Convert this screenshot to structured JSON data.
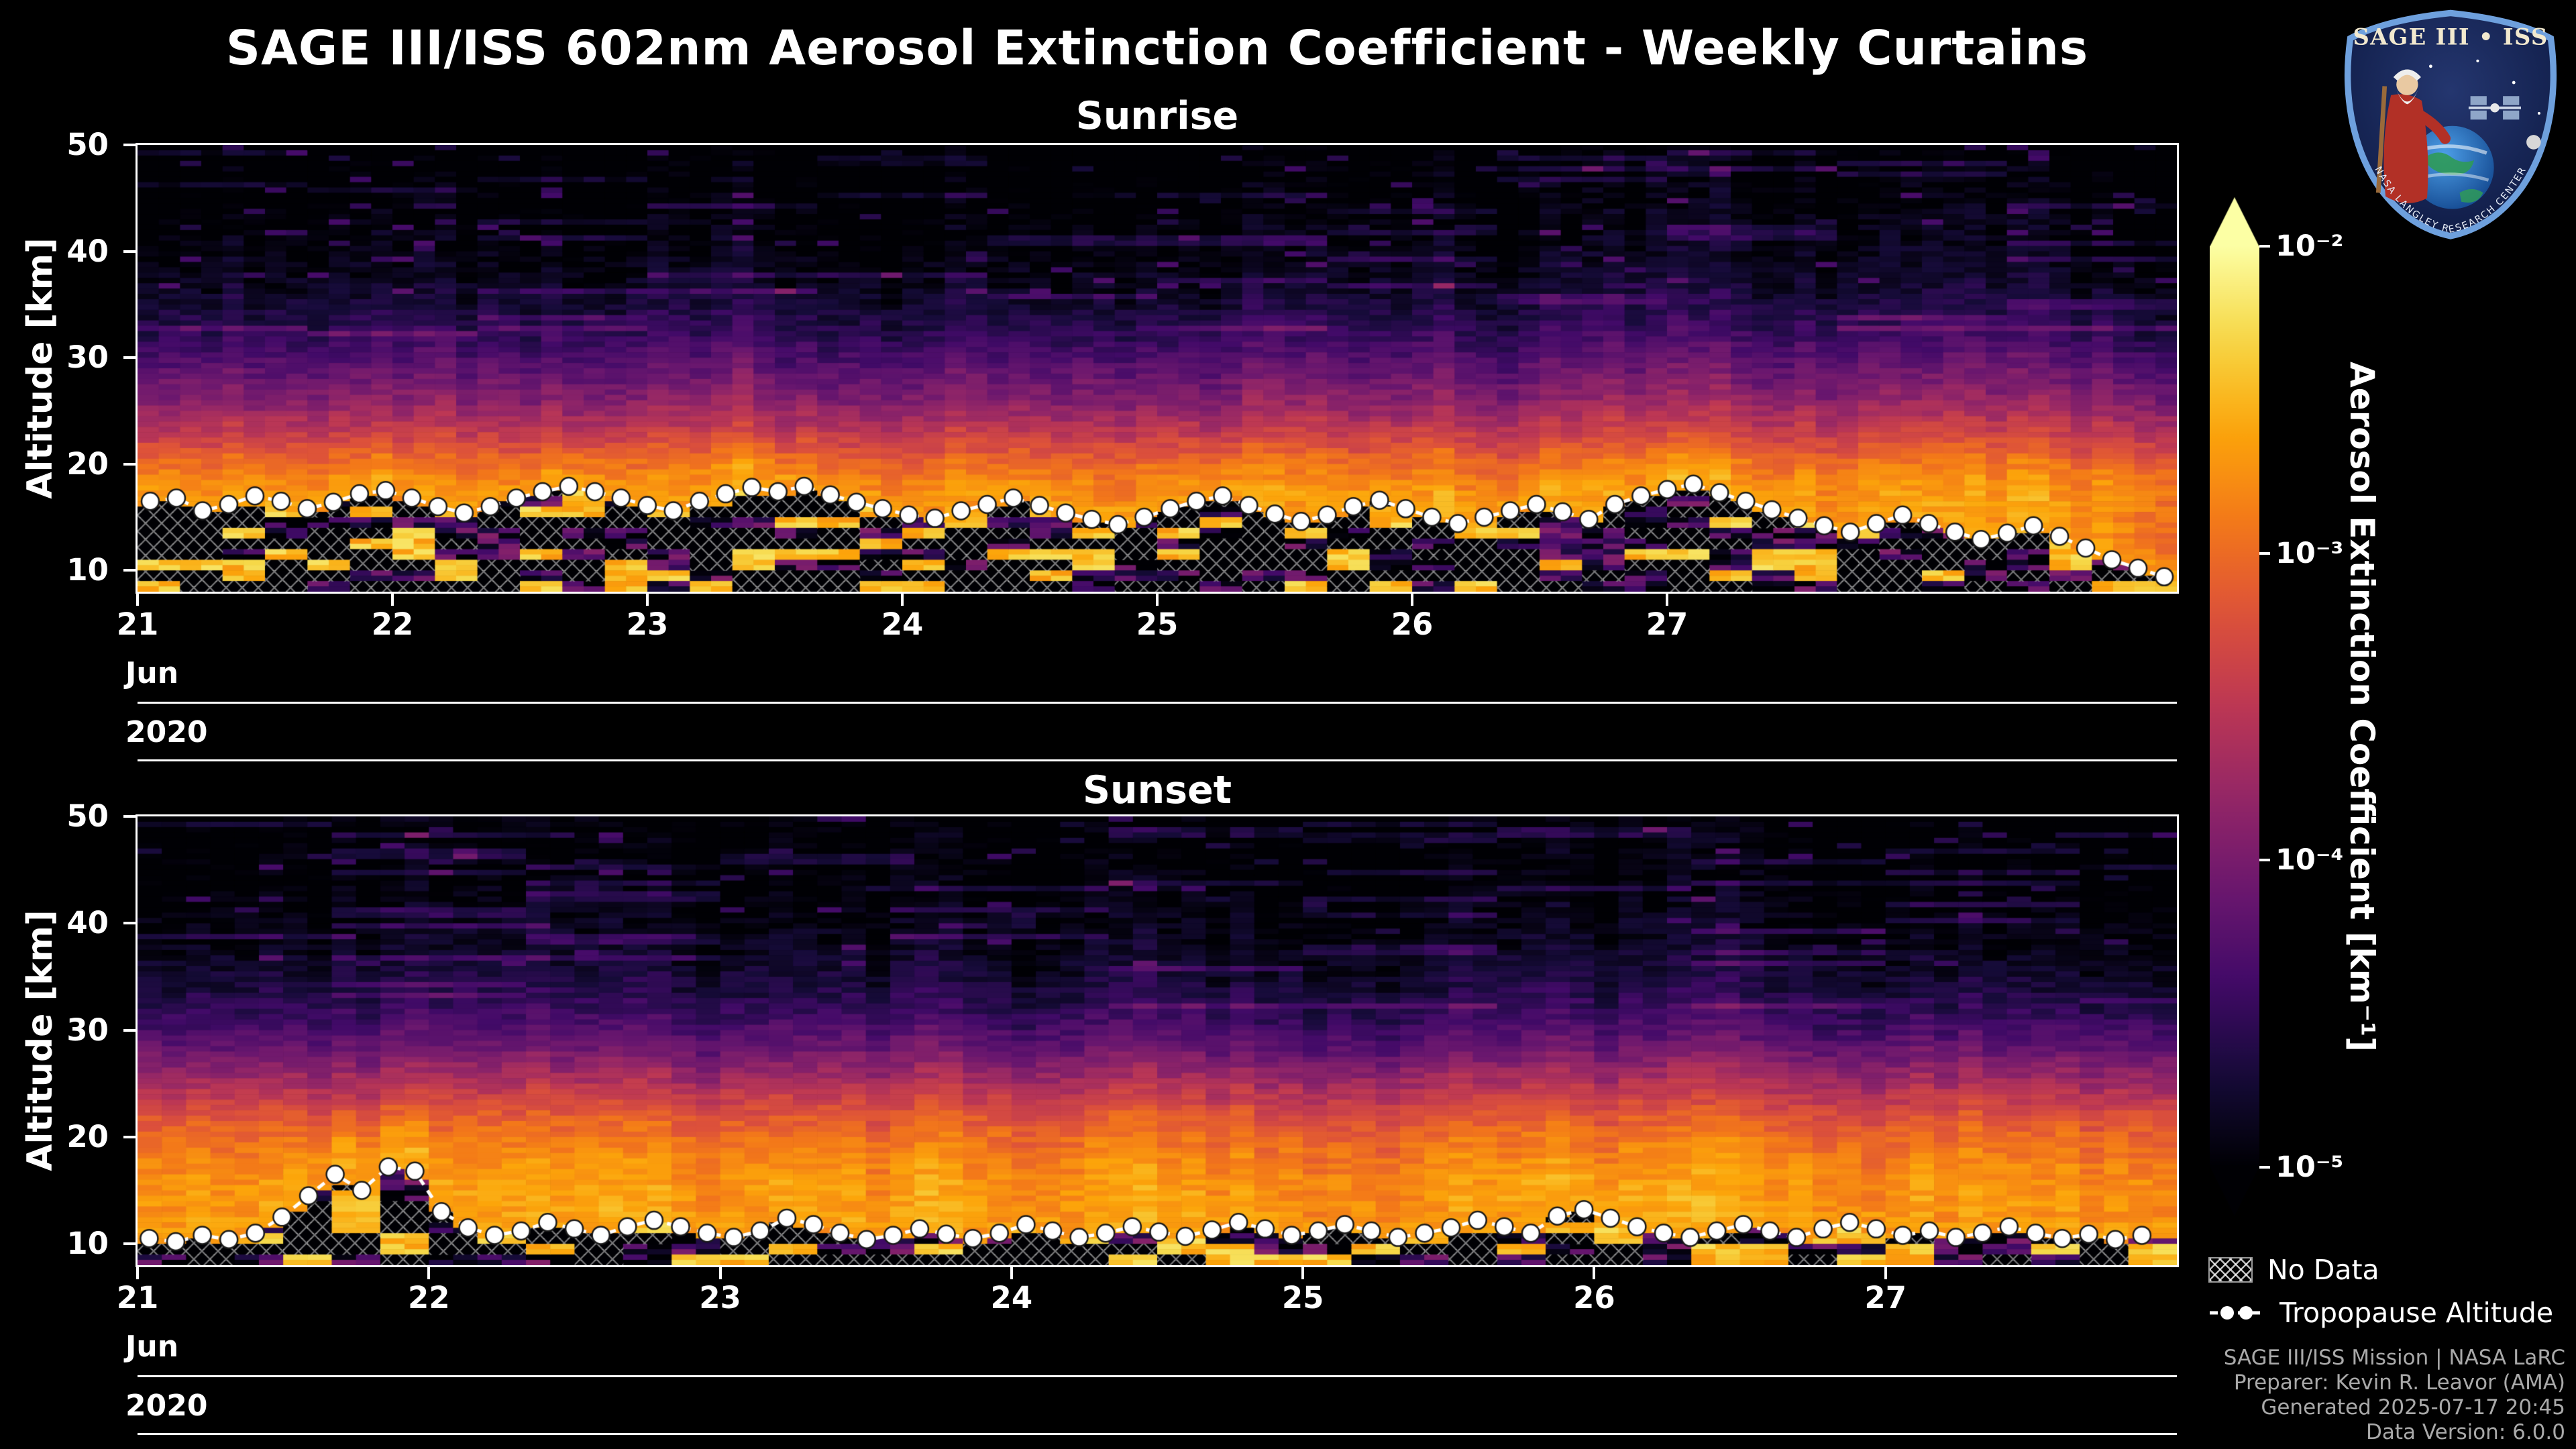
{
  "title": "SAGE III/ISS 602nm Aerosol Extinction Coefficient - Weekly Curtains",
  "logo": {
    "title": "SAGE III • ISS",
    "ring_text": "NASA LANGLEY RESEARCH CENTER"
  },
  "colorbar": {
    "label": "Aerosol Extinction Coefficient [km⁻¹]",
    "tick_labels": [
      "10⁻²",
      "10⁻³",
      "10⁻⁴",
      "10⁻⁵"
    ],
    "scale": "log",
    "min": 1e-05,
    "max": 0.01,
    "colormap": "inferno",
    "extend": "both"
  },
  "legend": {
    "no_data_label": "No Data",
    "tropopause_label": "Tropopause Altitude"
  },
  "footer": {
    "line1": "SAGE III/ISS Mission | NASA LaRC",
    "line2": "Preparer: Kevin R. Leavor (AMA)",
    "line3": "Generated 2025-07-17 20:45",
    "line4": "Data Version: 6.0.0"
  },
  "chart_data": [
    {
      "type": "heatmap",
      "panel": "sunrise",
      "title": "Sunrise",
      "x_label_month": "Jun",
      "x_label_year": "2020",
      "x_ticks": [
        21,
        22,
        23,
        24,
        25,
        26,
        27
      ],
      "x_range": [
        21,
        29
      ],
      "y_label": "Altitude [km]",
      "y_ticks": [
        50,
        40,
        30,
        20,
        10
      ],
      "y_range": [
        8,
        50
      ],
      "value_label": "Aerosol Extinction Coefficient [km⁻¹]",
      "value_scale": {
        "type": "log",
        "min": 1e-05,
        "max": 0.01,
        "colormap": "inferno"
      },
      "mean_profile": {
        "altitude_km": [
          8,
          10,
          12,
          14,
          16,
          18,
          20,
          22,
          24,
          26,
          28,
          30,
          32,
          34,
          36,
          38,
          40,
          44,
          50
        ],
        "log10_extinction": [
          -3.3,
          -3.1,
          -2.95,
          -2.85,
          -2.72,
          -2.7,
          -2.95,
          -3.25,
          -3.55,
          -3.85,
          -4.05,
          -4.25,
          -4.45,
          -4.6,
          -4.75,
          -4.85,
          -4.92,
          -5.0,
          -5.1
        ]
      },
      "typical_tropopause_km": 16,
      "tropopause_altitude": {
        "day_start": 21.05,
        "day_step": 0.1026,
        "altitudes_km": [
          16.5,
          16.8,
          15.6,
          16.2,
          17.0,
          16.5,
          15.8,
          16.4,
          17.2,
          17.5,
          16.8,
          16.0,
          15.4,
          16.0,
          16.8,
          17.4,
          17.9,
          17.4,
          16.8,
          16.1,
          15.6,
          16.5,
          17.2,
          17.8,
          17.4,
          17.9,
          17.1,
          16.4,
          15.8,
          15.2,
          14.9,
          15.6,
          16.2,
          16.8,
          16.1,
          15.4,
          14.8,
          14.3,
          15.0,
          15.8,
          16.5,
          17.0,
          16.1,
          15.3,
          14.6,
          15.2,
          16.0,
          16.6,
          15.8,
          15.0,
          14.4,
          15.0,
          15.6,
          16.2,
          15.5,
          14.8,
          16.2,
          17.0,
          17.6,
          18.1,
          17.3,
          16.5,
          15.7,
          14.9,
          14.2,
          13.6,
          14.4,
          15.2,
          14.4,
          13.6,
          12.9,
          13.5,
          14.2,
          13.2,
          12.1,
          11.0,
          10.2,
          9.4
        ]
      },
      "no_data_regions": "hatched cells below tropopause",
      "below_tropopause": {
        "no_data_frac": 0.5,
        "bright_frac": 0.25
      },
      "seed": 7
    },
    {
      "type": "heatmap",
      "panel": "sunset",
      "title": "Sunset",
      "x_label_month": "Jun",
      "x_label_year": "2020",
      "x_ticks": [
        21,
        22,
        23,
        24,
        25,
        26,
        27
      ],
      "x_range": [
        21,
        28
      ],
      "y_label": "Altitude [km]",
      "y_ticks": [
        50,
        40,
        30,
        20,
        10
      ],
      "y_range": [
        8,
        50
      ],
      "value_label": "Aerosol Extinction Coefficient [km⁻¹]",
      "value_scale": {
        "type": "log",
        "min": 1e-05,
        "max": 0.01,
        "colormap": "inferno"
      },
      "mean_profile": {
        "altitude_km": [
          8,
          10,
          12,
          14,
          16,
          18,
          20,
          22,
          24,
          26,
          28,
          30,
          32,
          34,
          36,
          38,
          40,
          44,
          50
        ],
        "log10_extinction": [
          -3.0,
          -2.85,
          -2.7,
          -2.7,
          -2.75,
          -2.85,
          -3.0,
          -3.2,
          -3.5,
          -3.8,
          -4.1,
          -4.35,
          -4.55,
          -4.7,
          -4.8,
          -4.9,
          -4.96,
          -5.05,
          -5.1
        ]
      },
      "typical_tropopause_km": 11,
      "tropopause_altitude": {
        "day_start": 21.04,
        "day_step": 0.0912,
        "altitudes_km": [
          10.5,
          10.2,
          10.8,
          10.4,
          11.0,
          12.5,
          14.5,
          16.5,
          15.0,
          17.2,
          16.8,
          13.0,
          11.5,
          10.8,
          11.2,
          12.0,
          11.4,
          10.8,
          11.6,
          12.2,
          11.6,
          11.0,
          10.6,
          11.2,
          12.4,
          11.8,
          11.0,
          10.4,
          10.8,
          11.4,
          10.9,
          10.5,
          11.0,
          11.8,
          11.2,
          10.6,
          11.0,
          11.6,
          11.1,
          10.7,
          11.3,
          12.0,
          11.4,
          10.8,
          11.2,
          11.8,
          11.2,
          10.6,
          11.0,
          11.5,
          12.2,
          11.6,
          11.0,
          12.6,
          13.2,
          12.4,
          11.6,
          11.0,
          10.6,
          11.2,
          11.8,
          11.2,
          10.6,
          11.4,
          12.0,
          11.4,
          10.8,
          11.2,
          10.6,
          11.0,
          11.6,
          11.0,
          10.5,
          10.9,
          10.4,
          10.8
        ]
      },
      "no_data_regions": "hatched cells below tropopause",
      "below_tropopause": {
        "no_data_frac": 0.4,
        "bright_frac": 0.32
      },
      "seed": 13
    }
  ]
}
